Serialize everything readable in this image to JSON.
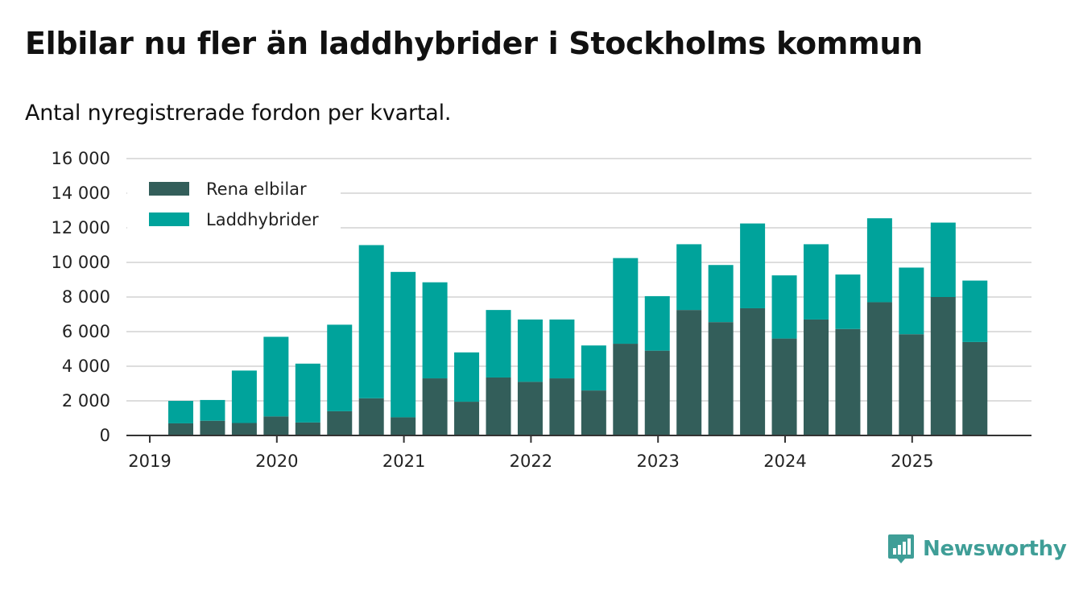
{
  "title": "Elbilar nu fler än laddhybrider i Stockholms kommun",
  "subtitle": "Antal nyregistrerade fordon per kvartal.",
  "brand": {
    "name": "Newsworthy",
    "icon": "bar-chart-icon"
  },
  "colors": {
    "electric": "#335e5a",
    "hybrid": "#00a39b",
    "grid": "#dddddd",
    "axis": "#333333",
    "brand": "#3f9e97"
  },
  "chart_data": {
    "type": "bar",
    "stacked": true,
    "title": "Elbilar nu fler än laddhybrider i Stockholms kommun",
    "subtitle": "Antal nyregistrerade fordon per kvartal.",
    "xlabel": "",
    "ylabel": "",
    "ylim": [
      0,
      16000
    ],
    "yticks": [
      0,
      2000,
      4000,
      6000,
      8000,
      10000,
      12000,
      14000,
      16000
    ],
    "ytick_labels": [
      "0",
      "2 000",
      "4 000",
      "6 000",
      "8 000",
      "10 000",
      "12 000",
      "14 000",
      "16 000"
    ],
    "xticks": [
      "2019",
      "2020",
      "2021",
      "2022",
      "2023",
      "2024",
      "2025"
    ],
    "grid": true,
    "legend_position": "top-left",
    "categories": [
      "2019 Q2",
      "2019 Q3",
      "2019 Q4",
      "2020 Q1",
      "2020 Q2",
      "2020 Q3",
      "2020 Q4",
      "2021 Q1",
      "2021 Q2",
      "2021 Q3",
      "2021 Q4",
      "2022 Q1",
      "2022 Q2",
      "2022 Q3",
      "2022 Q4",
      "2023 Q1",
      "2023 Q2",
      "2023 Q3",
      "2023 Q4",
      "2024 Q1",
      "2024 Q2",
      "2024 Q3",
      "2024 Q4",
      "2025 Q1",
      "2025 Q2",
      "2025 Q3"
    ],
    "series": [
      {
        "name": "Rena elbilar",
        "values": [
          700,
          850,
          720,
          1100,
          750,
          1400,
          2150,
          1050,
          3300,
          1950,
          3350,
          3100,
          3300,
          2600,
          5300,
          4900,
          7250,
          6550,
          7350,
          5600,
          6700,
          6150,
          7700,
          5850,
          8000,
          5400
        ]
      },
      {
        "name": "Laddhybrider",
        "values": [
          1300,
          1200,
          3030,
          4600,
          3400,
          5000,
          8850,
          8400,
          5550,
          2850,
          3900,
          3600,
          3400,
          2600,
          4950,
          3150,
          3800,
          3300,
          4900,
          3650,
          4350,
          3150,
          4850,
          3850,
          4300,
          3550
        ]
      }
    ]
  }
}
